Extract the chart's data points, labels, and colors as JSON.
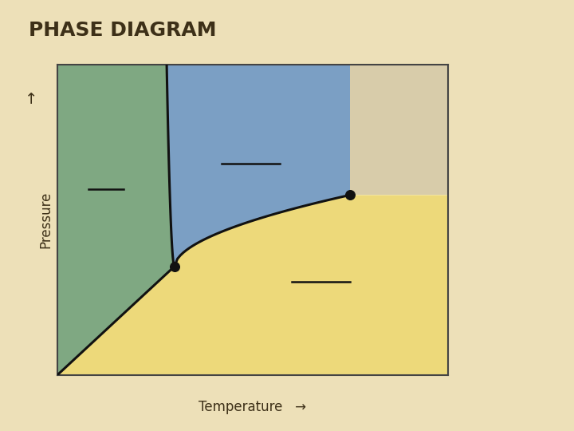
{
  "title": "PHASE DIAGRAM",
  "xlabel": "Temperature",
  "ylabel": "Pressure",
  "background_color": "#EDE0B8",
  "plot_bg_color": "#FFFFFF",
  "solid_color": "#7FA882",
  "liquid_color": "#7B9FC4",
  "gas_color": "#EDD97A",
  "supercritical_color": "#D8CCAA",
  "title_color": "#3D3018",
  "title_fontsize": 18,
  "axis_label_fontsize": 12,
  "line_color": "#111111",
  "line_width": 2.2,
  "dot_size": 70,
  "triple_point": [
    0.3,
    0.35
  ],
  "critical_point": [
    0.75,
    0.58
  ],
  "xlim": [
    0,
    1
  ],
  "ylim": [
    0,
    1
  ]
}
